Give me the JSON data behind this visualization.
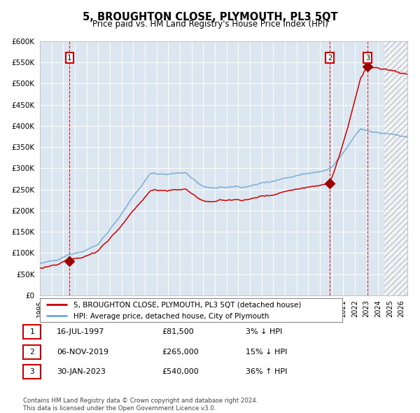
{
  "title": "5, BROUGHTON CLOSE, PLYMOUTH, PL3 5QT",
  "subtitle": "Price paid vs. HM Land Registry's House Price Index (HPI)",
  "ylim": [
    0,
    600000
  ],
  "yticks": [
    0,
    50000,
    100000,
    150000,
    200000,
    250000,
    300000,
    350000,
    400000,
    450000,
    500000,
    550000,
    600000
  ],
  "ytick_labels": [
    "£0",
    "£50K",
    "£100K",
    "£150K",
    "£200K",
    "£250K",
    "£300K",
    "£350K",
    "£400K",
    "£450K",
    "£500K",
    "£550K",
    "£600K"
  ],
  "xlim_start": 1995.0,
  "xlim_end": 2026.5,
  "plot_bg_color": "#dce6f0",
  "hpi_line_color": "#6fa8d6",
  "price_line_color": "#cc0000",
  "sale_marker_color": "#990000",
  "sale_dot_size": 7,
  "vline_color": "#cc0000",
  "legend_line1": "5, BROUGHTON CLOSE, PLYMOUTH, PL3 5QT (detached house)",
  "legend_line2": "HPI: Average price, detached house, City of Plymouth",
  "transactions": [
    {
      "label": "1",
      "date_num": 1997.54,
      "price": 81500
    },
    {
      "label": "2",
      "date_num": 2019.84,
      "price": 265000
    },
    {
      "label": "3",
      "date_num": 2023.08,
      "price": 540000
    }
  ],
  "table_rows": [
    {
      "num": "1",
      "date": "16-JUL-1997",
      "price": "£81,500",
      "hpi": "3% ↓ HPI"
    },
    {
      "num": "2",
      "date": "06-NOV-2019",
      "price": "£265,000",
      "hpi": "15% ↓ HPI"
    },
    {
      "num": "3",
      "date": "30-JAN-2023",
      "price": "£540,000",
      "hpi": "36% ↑ HPI"
    }
  ],
  "footnote": "Contains HM Land Registry data © Crown copyright and database right 2024.\nThis data is licensed under the Open Government Licence v3.0.",
  "future_cutoff": 2024.5,
  "grid_color": "white",
  "spine_color": "#aaaaaa"
}
